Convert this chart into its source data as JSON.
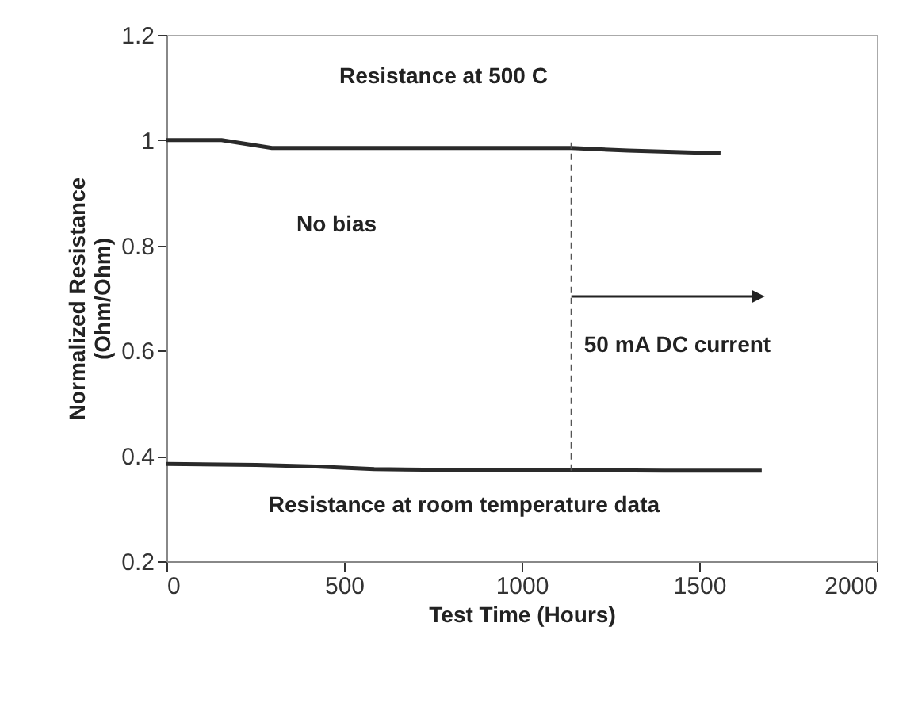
{
  "chart_data": {
    "type": "line",
    "xlabel": "Test Time (Hours)",
    "ylabel": "Normalized Resistance (Ohm/Ohm)",
    "xlim": [
      0,
      2000
    ],
    "xticks": [
      0,
      500,
      1000,
      1500,
      2000
    ],
    "ylim": [
      0.2,
      1.2
    ],
    "yticks": [
      0.2,
      0.4,
      0.6,
      0.8,
      1,
      1.2
    ],
    "grid": false,
    "marker": "none",
    "line_style": "solid",
    "series": [
      {
        "name": "Resistance at 500 C",
        "color": "#2a2a2a",
        "x": [
          0,
          155,
          297,
          600,
          900,
          1140,
          1300,
          1560
        ],
        "values": [
          1.0,
          1.0,
          0.985,
          0.985,
          0.985,
          0.985,
          0.98,
          0.975
        ]
      },
      {
        "name": "Resistance at room temperature data",
        "color": "#2a2a2a",
        "x": [
          0,
          253,
          421,
          585,
          900,
          1140,
          1400,
          1676
        ],
        "values": [
          0.385,
          0.383,
          0.38,
          0.375,
          0.373,
          0.373,
          0.372,
          0.372
        ]
      }
    ],
    "ref_lines": [
      {
        "axis": "x",
        "value": 1140,
        "line_style": "dashed",
        "color": "#555555"
      }
    ],
    "annotations": [
      "No bias",
      "50 mA DC current"
    ]
  }
}
